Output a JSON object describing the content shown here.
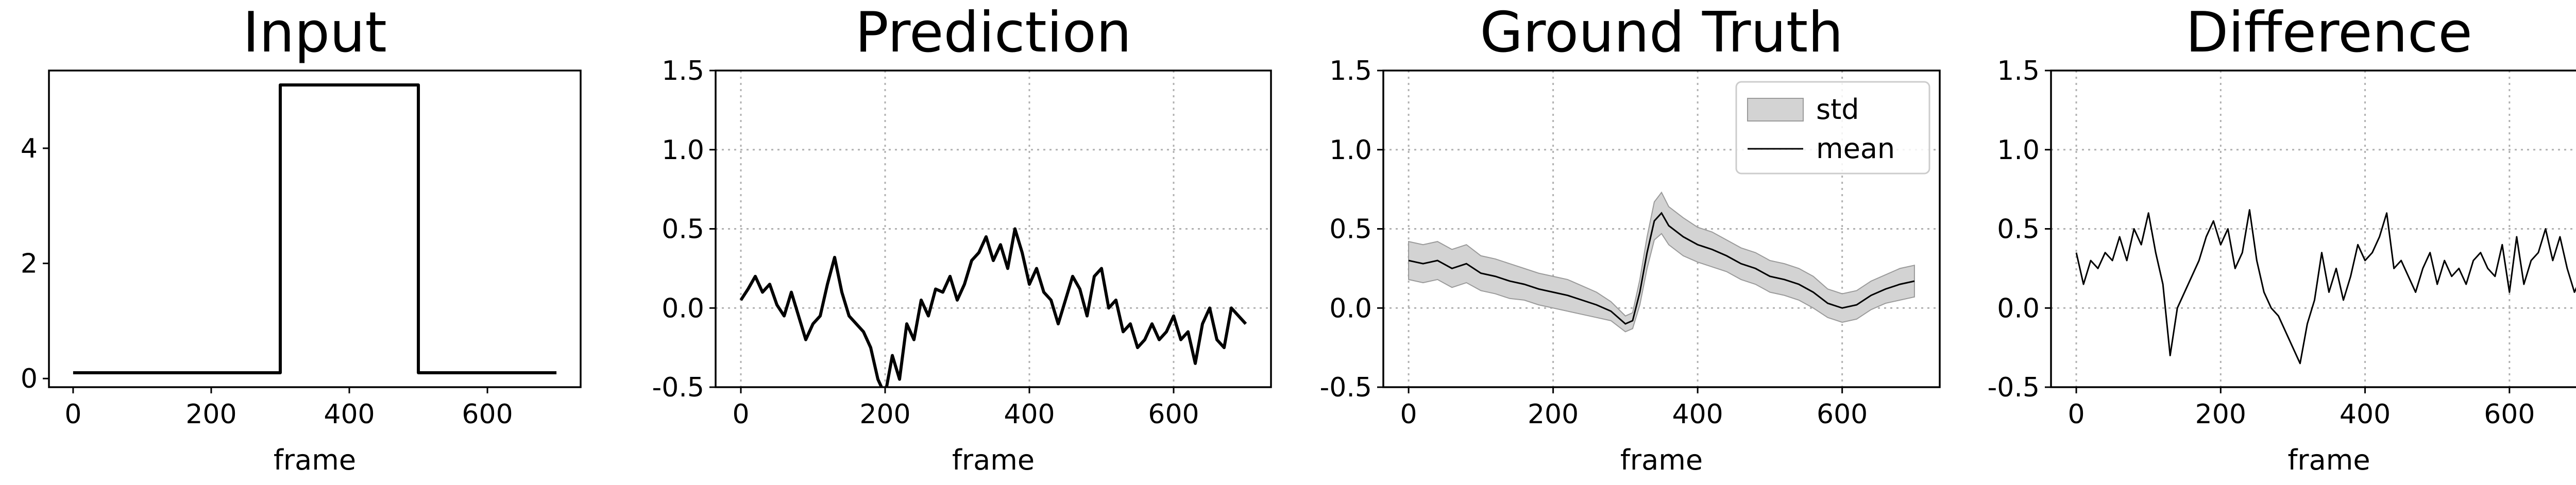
{
  "chart_data": [
    {
      "type": "line",
      "title": "Input",
      "xlabel": "frame",
      "ylabel": "",
      "xlim": [
        -35,
        735
      ],
      "ylim": [
        -0.15,
        5.35
      ],
      "xticks": [
        0,
        200,
        400,
        600
      ],
      "yticks": [
        0,
        2,
        4
      ],
      "grid": false,
      "series": [
        {
          "x": [
            0,
            300,
            300,
            500,
            500,
            700
          ],
          "y": [
            0.1,
            0.1,
            5.1,
            5.1,
            0.1,
            0.1
          ]
        }
      ]
    },
    {
      "type": "line",
      "title": "Prediction",
      "xlabel": "frame",
      "ylabel": "",
      "xlim": [
        -35,
        735
      ],
      "ylim": [
        -0.5,
        1.5
      ],
      "xticks": [
        0,
        200,
        400,
        600
      ],
      "yticks": [
        -0.5,
        0.0,
        0.5,
        1.0,
        1.5
      ],
      "grid": true,
      "series": [
        {
          "x": [
            0,
            10,
            20,
            30,
            40,
            50,
            60,
            70,
            80,
            90,
            100,
            110,
            120,
            130,
            140,
            150,
            160,
            170,
            180,
            190,
            200,
            210,
            220,
            230,
            240,
            250,
            260,
            270,
            280,
            290,
            300,
            310,
            320,
            330,
            340,
            350,
            360,
            370,
            380,
            390,
            400,
            410,
            420,
            430,
            440,
            450,
            460,
            470,
            480,
            490,
            500,
            510,
            520,
            530,
            540,
            550,
            560,
            570,
            580,
            590,
            600,
            610,
            620,
            630,
            640,
            650,
            660,
            670,
            680,
            690,
            700
          ],
          "y": [
            0.05,
            0.12,
            0.2,
            0.1,
            0.15,
            0.02,
            -0.05,
            0.1,
            -0.05,
            -0.2,
            -0.1,
            -0.05,
            0.15,
            0.32,
            0.1,
            -0.05,
            -0.1,
            -0.15,
            -0.25,
            -0.45,
            -0.55,
            -0.3,
            -0.45,
            -0.1,
            -0.2,
            0.05,
            -0.05,
            0.12,
            0.1,
            0.2,
            0.05,
            0.15,
            0.3,
            0.35,
            0.45,
            0.3,
            0.4,
            0.25,
            0.5,
            0.35,
            0.15,
            0.25,
            0.1,
            0.05,
            -0.1,
            0.05,
            0.2,
            0.12,
            -0.05,
            0.2,
            0.25,
            0.0,
            0.05,
            -0.15,
            -0.1,
            -0.25,
            -0.2,
            -0.1,
            -0.2,
            -0.15,
            -0.05,
            -0.2,
            -0.15,
            -0.35,
            -0.1,
            0.0,
            -0.2,
            -0.25,
            0.0,
            -0.05,
            -0.1
          ]
        }
      ]
    },
    {
      "type": "area",
      "title": "Ground Truth",
      "xlabel": "frame",
      "ylabel": "",
      "xlim": [
        -35,
        735
      ],
      "ylim": [
        -0.5,
        1.5
      ],
      "xticks": [
        0,
        200,
        400,
        600
      ],
      "yticks": [
        -0.5,
        0.0,
        0.5,
        1.0,
        1.5
      ],
      "grid": true,
      "legend": {
        "placement": "top-right",
        "entries": [
          "std",
          "mean"
        ]
      },
      "series": [
        {
          "name": "mean",
          "x": [
            0,
            20,
            40,
            60,
            80,
            100,
            120,
            140,
            160,
            180,
            200,
            220,
            240,
            260,
            280,
            300,
            310,
            320,
            330,
            340,
            350,
            360,
            380,
            400,
            420,
            440,
            460,
            480,
            500,
            520,
            540,
            560,
            580,
            600,
            620,
            640,
            660,
            680,
            700
          ],
          "y": [
            0.3,
            0.28,
            0.3,
            0.25,
            0.28,
            0.22,
            0.2,
            0.17,
            0.15,
            0.12,
            0.1,
            0.08,
            0.05,
            0.02,
            -0.02,
            -0.1,
            -0.08,
            0.1,
            0.35,
            0.55,
            0.6,
            0.52,
            0.45,
            0.4,
            0.37,
            0.33,
            0.28,
            0.25,
            0.2,
            0.18,
            0.15,
            0.1,
            0.03,
            0.0,
            0.02,
            0.08,
            0.12,
            0.15,
            0.17
          ]
        },
        {
          "name": "std",
          "x": [
            0,
            20,
            40,
            60,
            80,
            100,
            120,
            140,
            160,
            180,
            200,
            220,
            240,
            260,
            280,
            300,
            310,
            320,
            330,
            340,
            350,
            360,
            380,
            400,
            420,
            440,
            460,
            480,
            500,
            520,
            540,
            560,
            580,
            600,
            620,
            640,
            660,
            680,
            700
          ],
          "y": [
            0.12,
            0.12,
            0.12,
            0.12,
            0.12,
            0.11,
            0.11,
            0.11,
            0.1,
            0.1,
            0.1,
            0.1,
            0.09,
            0.08,
            0.06,
            0.05,
            0.05,
            0.08,
            0.1,
            0.12,
            0.13,
            0.12,
            0.12,
            0.11,
            0.11,
            0.1,
            0.1,
            0.1,
            0.1,
            0.1,
            0.1,
            0.1,
            0.09,
            0.09,
            0.09,
            0.09,
            0.09,
            0.1,
            0.1
          ]
        }
      ]
    },
    {
      "type": "line",
      "title": "Difference",
      "xlabel": "frame",
      "ylabel": "",
      "xlim": [
        -35,
        735
      ],
      "ylim": [
        -0.5,
        1.5
      ],
      "xticks": [
        0,
        200,
        400,
        600
      ],
      "yticks": [
        -0.5,
        0.0,
        0.5,
        1.0,
        1.5
      ],
      "grid": true,
      "series": [
        {
          "x": [
            0,
            10,
            20,
            30,
            40,
            50,
            60,
            70,
            80,
            90,
            100,
            110,
            120,
            130,
            140,
            150,
            160,
            170,
            180,
            190,
            200,
            210,
            220,
            230,
            240,
            250,
            260,
            270,
            280,
            290,
            300,
            310,
            320,
            330,
            340,
            350,
            360,
            370,
            380,
            390,
            400,
            410,
            420,
            430,
            440,
            450,
            460,
            470,
            480,
            490,
            500,
            510,
            520,
            530,
            540,
            550,
            560,
            570,
            580,
            590,
            600,
            610,
            620,
            630,
            640,
            650,
            660,
            670,
            680,
            690,
            700
          ],
          "y": [
            0.35,
            0.15,
            0.3,
            0.25,
            0.35,
            0.3,
            0.45,
            0.3,
            0.5,
            0.4,
            0.6,
            0.35,
            0.15,
            -0.3,
            0.0,
            0.1,
            0.2,
            0.3,
            0.45,
            0.55,
            0.4,
            0.5,
            0.25,
            0.35,
            0.62,
            0.3,
            0.1,
            0.0,
            -0.05,
            -0.15,
            -0.25,
            -0.35,
            -0.1,
            0.05,
            0.35,
            0.1,
            0.25,
            0.05,
            0.2,
            0.4,
            0.3,
            0.35,
            0.45,
            0.6,
            0.25,
            0.3,
            0.2,
            0.1,
            0.25,
            0.35,
            0.15,
            0.3,
            0.2,
            0.25,
            0.15,
            0.3,
            0.35,
            0.25,
            0.2,
            0.4,
            0.1,
            0.45,
            0.15,
            0.3,
            0.35,
            0.5,
            0.3,
            0.45,
            0.25,
            0.1,
            0.2
          ]
        }
      ]
    }
  ]
}
